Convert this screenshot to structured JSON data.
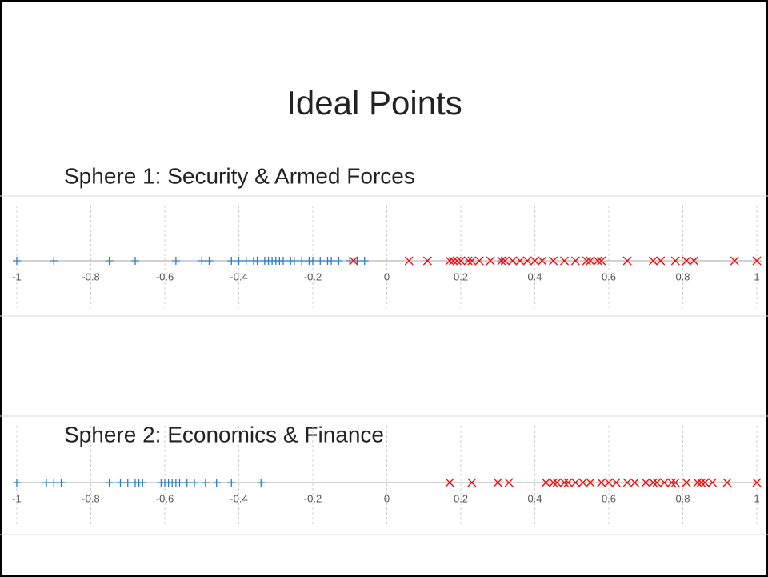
{
  "title": "Ideal Points",
  "chart_data": [
    {
      "type": "strip",
      "title": "Sphere 1: Security & Armed Forces",
      "xlim": [
        -1,
        1
      ],
      "xticks": [
        -1,
        -0.8,
        -0.6,
        -0.4,
        -0.2,
        0,
        0.2,
        0.4,
        0.6,
        0.8,
        1
      ],
      "grid": true,
      "series": [
        {
          "color": "#2e7bc4",
          "marker": "plus",
          "values": [
            -1,
            -0.9,
            -0.75,
            -0.68,
            -0.57,
            -0.5,
            -0.48,
            -0.42,
            -0.4,
            -0.38,
            -0.36,
            -0.35,
            -0.33,
            -0.32,
            -0.31,
            -0.3,
            -0.29,
            -0.28,
            -0.26,
            -0.25,
            -0.23,
            -0.21,
            -0.2,
            -0.18,
            -0.16,
            -0.15,
            -0.13,
            -0.1,
            -0.08,
            -0.06,
            0.31
          ]
        },
        {
          "color": "#ff0000",
          "marker": "cross",
          "values": [
            -0.09,
            0.06,
            0.11,
            0.17,
            0.18,
            0.19,
            0.2,
            0.22,
            0.23,
            0.25,
            0.28,
            0.31,
            0.32,
            0.34,
            0.36,
            0.38,
            0.4,
            0.42,
            0.45,
            0.48,
            0.51,
            0.54,
            0.55,
            0.57,
            0.58,
            0.65,
            0.72,
            0.74,
            0.78,
            0.81,
            0.83,
            0.94,
            1
          ]
        }
      ]
    },
    {
      "type": "strip",
      "title": "Sphere 2: Economics & Finance",
      "xlim": [
        -1,
        1
      ],
      "xticks": [
        -1,
        -0.8,
        -0.6,
        -0.4,
        -0.2,
        0,
        0.2,
        0.4,
        0.6,
        0.8,
        1
      ],
      "grid": true,
      "series": [
        {
          "color": "#2e7bc4",
          "marker": "plus",
          "values": [
            -1,
            -0.92,
            -0.9,
            -0.88,
            -0.75,
            -0.72,
            -0.7,
            -0.68,
            -0.67,
            -0.66,
            -0.61,
            -0.6,
            -0.59,
            -0.58,
            -0.57,
            -0.56,
            -0.54,
            -0.52,
            -0.49,
            -0.46,
            -0.42,
            -0.34
          ]
        },
        {
          "color": "#ff0000",
          "marker": "cross",
          "values": [
            0.17,
            0.23,
            0.3,
            0.33,
            0.43,
            0.45,
            0.46,
            0.48,
            0.49,
            0.51,
            0.53,
            0.55,
            0.58,
            0.6,
            0.62,
            0.65,
            0.67,
            0.7,
            0.72,
            0.73,
            0.75,
            0.77,
            0.78,
            0.81,
            0.84,
            0.85,
            0.86,
            0.88,
            0.92,
            1
          ]
        }
      ]
    }
  ]
}
